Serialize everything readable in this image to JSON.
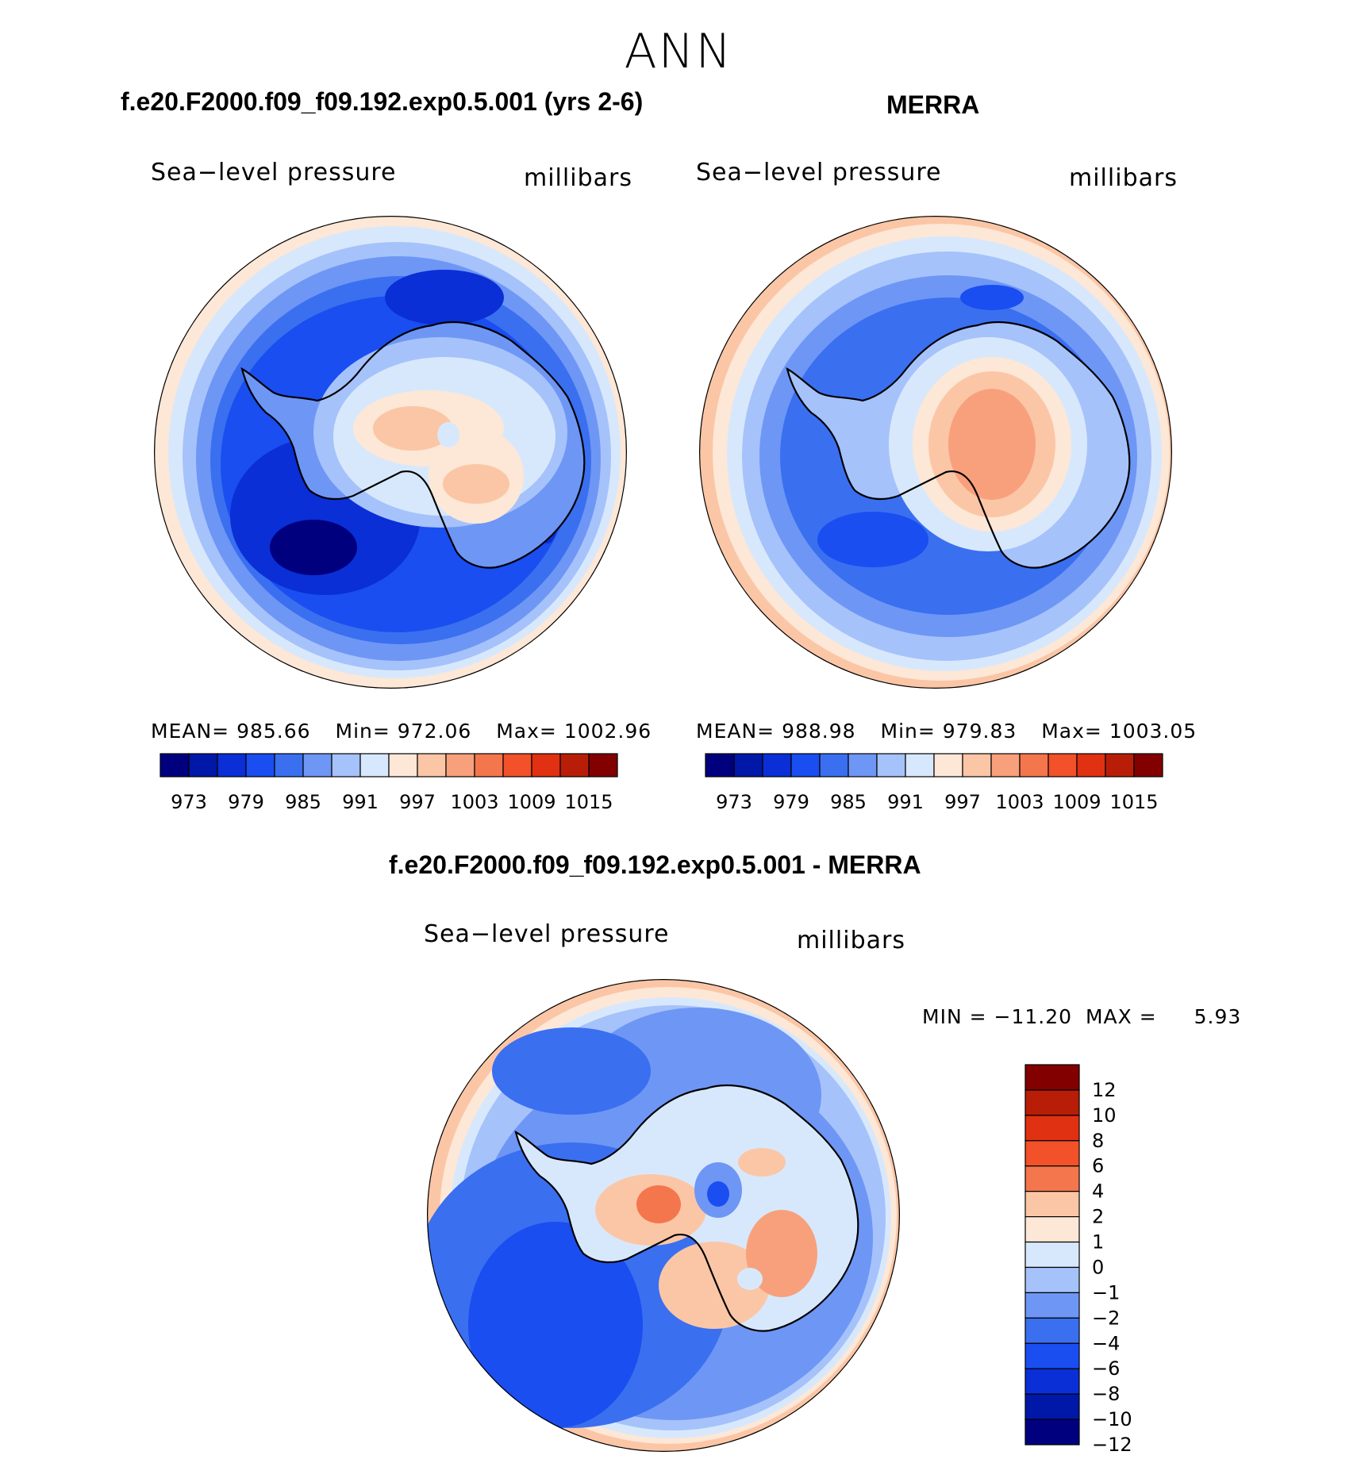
{
  "title": "ANN",
  "panels": [
    {
      "id": "model",
      "case_title": "f.e20.F2000.f09_f09.192.exp0.5.001 (yrs 2-6)",
      "variable": "Sea−level pressure",
      "units": "millibars",
      "stats": {
        "mean_label": "MEAN=",
        "mean": "985.66",
        "min_label": "Min=",
        "min": "972.06",
        "max_label": "Max=",
        "max": "1002.96"
      }
    },
    {
      "id": "obs",
      "case_title": "MERRA",
      "variable": "Sea−level pressure",
      "units": "millibars",
      "stats": {
        "mean_label": "MEAN=",
        "mean": "988.98",
        "min_label": "Min=",
        "min": "979.83",
        "max_label": "Max=",
        "max": "1003.05"
      }
    }
  ],
  "abs_colorbar": {
    "colors": [
      "#00007f",
      "#0018a8",
      "#0a2fd6",
      "#1a4ef0",
      "#3a6ff0",
      "#6e96f5",
      "#a6c2fb",
      "#d8e8fc",
      "#fde7d6",
      "#fbc6a6",
      "#f8a07c",
      "#f4764d",
      "#f25129",
      "#e03112",
      "#b81e07",
      "#820000"
    ],
    "tick_labels": [
      "973",
      "979",
      "985",
      "991",
      "997",
      "1003",
      "1009",
      "1015"
    ]
  },
  "diff_panel": {
    "title": "f.e20.F2000.f09_f09.192.exp0.5.001 - MERRA",
    "variable": "Sea−level pressure",
    "units": "millibars",
    "min_label": "MIN =",
    "min": "−11.20",
    "max_label": "MAX =",
    "max": "5.93"
  },
  "diff_colorbar": {
    "colors": [
      "#820000",
      "#b81e07",
      "#e03112",
      "#f25129",
      "#f4764d",
      "#fbc6a6",
      "#fde7d6",
      "#d8e8fc",
      "#a6c2fb",
      "#6e96f5",
      "#3a6ff0",
      "#1a4ef0",
      "#0a2fd6",
      "#0018a8",
      "#00007f"
    ],
    "tick_labels": [
      "12",
      "10",
      "8",
      "6",
      "4",
      "2",
      "1",
      "0",
      "−1",
      "−2",
      "−4",
      "−6",
      "−8",
      "−10",
      "−12"
    ]
  },
  "map_colors": {
    "ocean_deep": "#0018a8",
    "ocean_strong": "#1a4ef0",
    "ocean_mid": "#3a6ff0",
    "ocean_light": "#6e96f5",
    "ocean_pale": "#a6c2fb",
    "ocean_faint": "#d8e8fc",
    "warm_faint": "#fde7d6",
    "warm_light": "#fbc6a6",
    "warm_mid": "#f8a07c",
    "warm_strong": "#f4764d",
    "coastline": "#000000"
  }
}
